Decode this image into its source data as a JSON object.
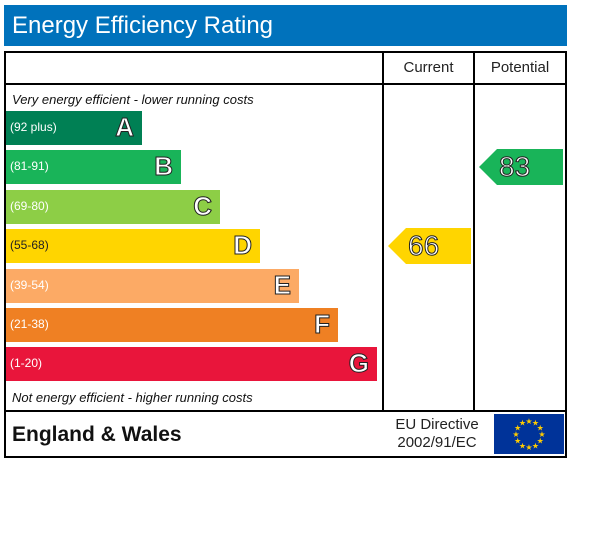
{
  "title": "Energy Efficiency Rating",
  "columns": {
    "current": "Current",
    "potential": "Potential"
  },
  "notes": {
    "top": "Very energy efficient - lower running costs",
    "bottom": "Not energy efficient - higher running costs"
  },
  "footer": {
    "region": "England & Wales",
    "directive_line1": "EU Directive",
    "directive_line2": "2002/91/EC"
  },
  "chart_data": {
    "type": "bar",
    "title": "Energy Efficiency Rating",
    "categories": [
      "A",
      "B",
      "C",
      "D",
      "E",
      "F",
      "G"
    ],
    "ranges": [
      "(92 plus)",
      "(81-91)",
      "(69-80)",
      "(55-68)",
      "(39-54)",
      "(21-38)",
      "(1-20)"
    ],
    "colors": [
      "#008054",
      "#19b459",
      "#8dce46",
      "#ffd500",
      "#fcaa65",
      "#ef8023",
      "#e9153b"
    ],
    "current": {
      "value": 66,
      "band": "D"
    },
    "potential": {
      "value": 83,
      "band": "B"
    }
  }
}
